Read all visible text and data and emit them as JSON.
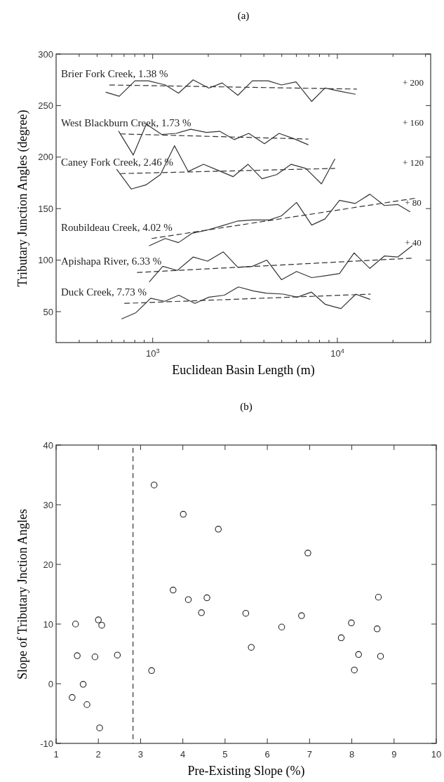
{
  "chart_data": [
    {
      "type": "line",
      "title": "(a)",
      "xlabel": "Euclidean Basin Length (m)",
      "ylabel": "Tributary Junction Angles (degree)",
      "log": "x",
      "xlim": [
        300,
        32000
      ],
      "ylim": [
        20,
        300
      ],
      "xticks": [
        {
          "value": 400,
          "label": null
        },
        {
          "value": 500,
          "label": null
        },
        {
          "value": 600,
          "label": null
        },
        {
          "value": 700,
          "label": null
        },
        {
          "value": 800,
          "label": null
        },
        {
          "value": 900,
          "label": null
        },
        {
          "value": 1000,
          "label": "10$^{3}$"
        },
        {
          "value": 2000,
          "label": null
        },
        {
          "value": 3000,
          "label": null
        },
        {
          "value": 4000,
          "label": null
        },
        {
          "value": 5000,
          "label": null
        },
        {
          "value": 6000,
          "label": null
        },
        {
          "value": 7000,
          "label": null
        },
        {
          "value": 8000,
          "label": null
        },
        {
          "value": 9000,
          "label": null
        },
        {
          "value": 10000,
          "label": "10$^{4}$"
        },
        {
          "value": 20000,
          "label": null
        },
        {
          "value": 30000,
          "label": null
        }
      ],
      "yticks": [
        50,
        100,
        150,
        200,
        250,
        300
      ],
      "grid": false,
      "marker": "none",
      "series": [
        {
          "name": "Brier Fork Creek, 1.38 %",
          "color": "#333333",
          "line_style": "solid",
          "x": [
            558,
            659,
            802,
            946,
            1170,
            1380,
            1655,
            2014,
            2377,
            2893,
            3467,
            4220,
            4980,
            5970,
            7260,
            8570,
            10270,
            12500
          ],
          "values": [
            263,
            259,
            274,
            274,
            270,
            262,
            275,
            267,
            272,
            260,
            274,
            274,
            270,
            273,
            254,
            267,
            264,
            261
          ]
        },
        {
          "color": "#333333",
          "line_style": "dashed",
          "x": [
            585,
            12700
          ],
          "values": [
            270,
            266
          ]
        },
        {
          "name": "West Blackburn Creek, 1.73 %",
          "color": "#333333",
          "line_style": "solid",
          "x": [
            655,
            785,
            924,
            1118,
            1340,
            1606,
            1954,
            2306,
            2763,
            3312,
            4030,
            4830,
            5790,
            6940
          ],
          "values": [
            225,
            202,
            232,
            222,
            223,
            227,
            224,
            225,
            217,
            223,
            213,
            223,
            218,
            212
          ]
        },
        {
          "color": "#333333",
          "line_style": "dashed",
          "x": [
            669,
            6940
          ],
          "values": [
            222.5,
            217.5
          ]
        },
        {
          "name": "Caney Fork Creek, 2.46 %",
          "color": "#333333",
          "line_style": "solid",
          "x": [
            639,
            766,
            919,
            1101,
            1312,
            1557,
            1884,
            2271,
            2723,
            3283,
            3910,
            4690,
            5620,
            6740,
            8200,
            9680
          ],
          "values": [
            188,
            169,
            173,
            183,
            211,
            186,
            193,
            187,
            181,
            193,
            179,
            183,
            193,
            189,
            174,
            198
          ]
        },
        {
          "color": "#333333",
          "line_style": "dashed",
          "x": [
            669,
            9680
          ],
          "values": [
            184,
            189
          ]
        },
        {
          "name": "Roubildeau Creek, 4.02 %",
          "color": "#333333",
          "line_style": "solid",
          "x": [
            960,
            1170,
            1380,
            1630,
            1954,
            2342,
            2893,
            3467,
            4280,
            4980,
            6010,
            7260,
            8570,
            10270,
            12500,
            14990,
            17960,
            21210,
            24660
          ],
          "values": [
            114,
            121,
            117,
            126,
            129,
            133,
            138,
            139,
            139,
            143,
            156,
            134,
            140,
            158,
            155,
            164,
            153,
            154,
            147
          ]
        },
        {
          "color": "#333333",
          "line_style": "dashed",
          "x": [
            990,
            26200
          ],
          "values": [
            121,
            160
          ]
        },
        {
          "name": "Apishapa River, 6.33 %",
          "color": "#333333",
          "line_style": "solid",
          "x": [
            960,
            1134,
            1360,
            1655,
            1983,
            2413,
            2893,
            3467,
            4155,
            4980,
            6010,
            7260,
            8710,
            10270,
            12310,
            14990,
            17960,
            21210,
            25420
          ],
          "values": [
            79,
            94,
            90,
            103,
            99,
            108,
            93,
            94,
            100,
            81,
            89,
            83,
            85,
            87,
            107,
            92,
            104,
            103,
            114
          ]
        },
        {
          "color": "#333333",
          "line_style": "dashed",
          "x": [
            826,
            25900
          ],
          "values": [
            88,
            102
          ]
        },
        {
          "name": "Duck Creek, 7.73 %",
          "color": "#333333",
          "line_style": "solid",
          "x": [
            680,
            811,
            976,
            1162,
            1385,
            1691,
            2014,
            2443,
            2910,
            3528,
            4130,
            5095,
            6070,
            7230,
            8615,
            10450,
            12580,
            14990
          ],
          "values": [
            43,
            49,
            63,
            60,
            66,
            58,
            64,
            66,
            74,
            70,
            68,
            67,
            64,
            69,
            57,
            53,
            67,
            62
          ]
        },
        {
          "color": "#333333",
          "line_style": "dashed",
          "x": [
            705,
            15100
          ],
          "values": [
            58,
            67
          ]
        }
      ],
      "annotations": [
        "+ 200",
        "+ 160",
        "+ 120",
        "+ 80",
        "+ 40"
      ]
    },
    {
      "type": "scatter",
      "title": "(b)",
      "xlabel": "Pre-Existing Slope (%)",
      "ylabel": "Slope of Tributary Jnction Angles",
      "xlim": [
        1,
        10
      ],
      "ylim": [
        -10,
        40
      ],
      "xticks": [
        1,
        2,
        3,
        4,
        5,
        6,
        7,
        8,
        9,
        10
      ],
      "yticks": [
        -10,
        0,
        10,
        20,
        30,
        40
      ],
      "grid": false,
      "marker": "circle",
      "series": [
        {
          "color": "#222222",
          "x": [
            1.46,
            1.5,
            1.38,
            1.64,
            1.73,
            2.0,
            2.08,
            1.92,
            2.03,
            2.45,
            3.26,
            3.77,
            4.13,
            4.44,
            4.57,
            5.49,
            5.62,
            6.34,
            6.81,
            6.96,
            7.75,
            7.99,
            8.06,
            8.16,
            8.6,
            8.63,
            8.68,
            3.32,
            4.01,
            4.84
          ],
          "values": [
            10.0,
            4.7,
            -2.3,
            -0.1,
            -3.5,
            10.7,
            9.8,
            4.5,
            -7.4,
            4.8,
            2.2,
            15.7,
            14.1,
            11.9,
            14.4,
            11.8,
            6.1,
            9.5,
            11.4,
            21.9,
            7.7,
            10.2,
            2.3,
            4.9,
            9.2,
            14.5,
            4.6,
            33.3,
            28.4,
            25.9
          ]
        }
      ],
      "ref_lines": [
        {
          "axis": "x",
          "value": 2.82,
          "color": "#333333",
          "line_style": "dashed"
        }
      ]
    }
  ]
}
